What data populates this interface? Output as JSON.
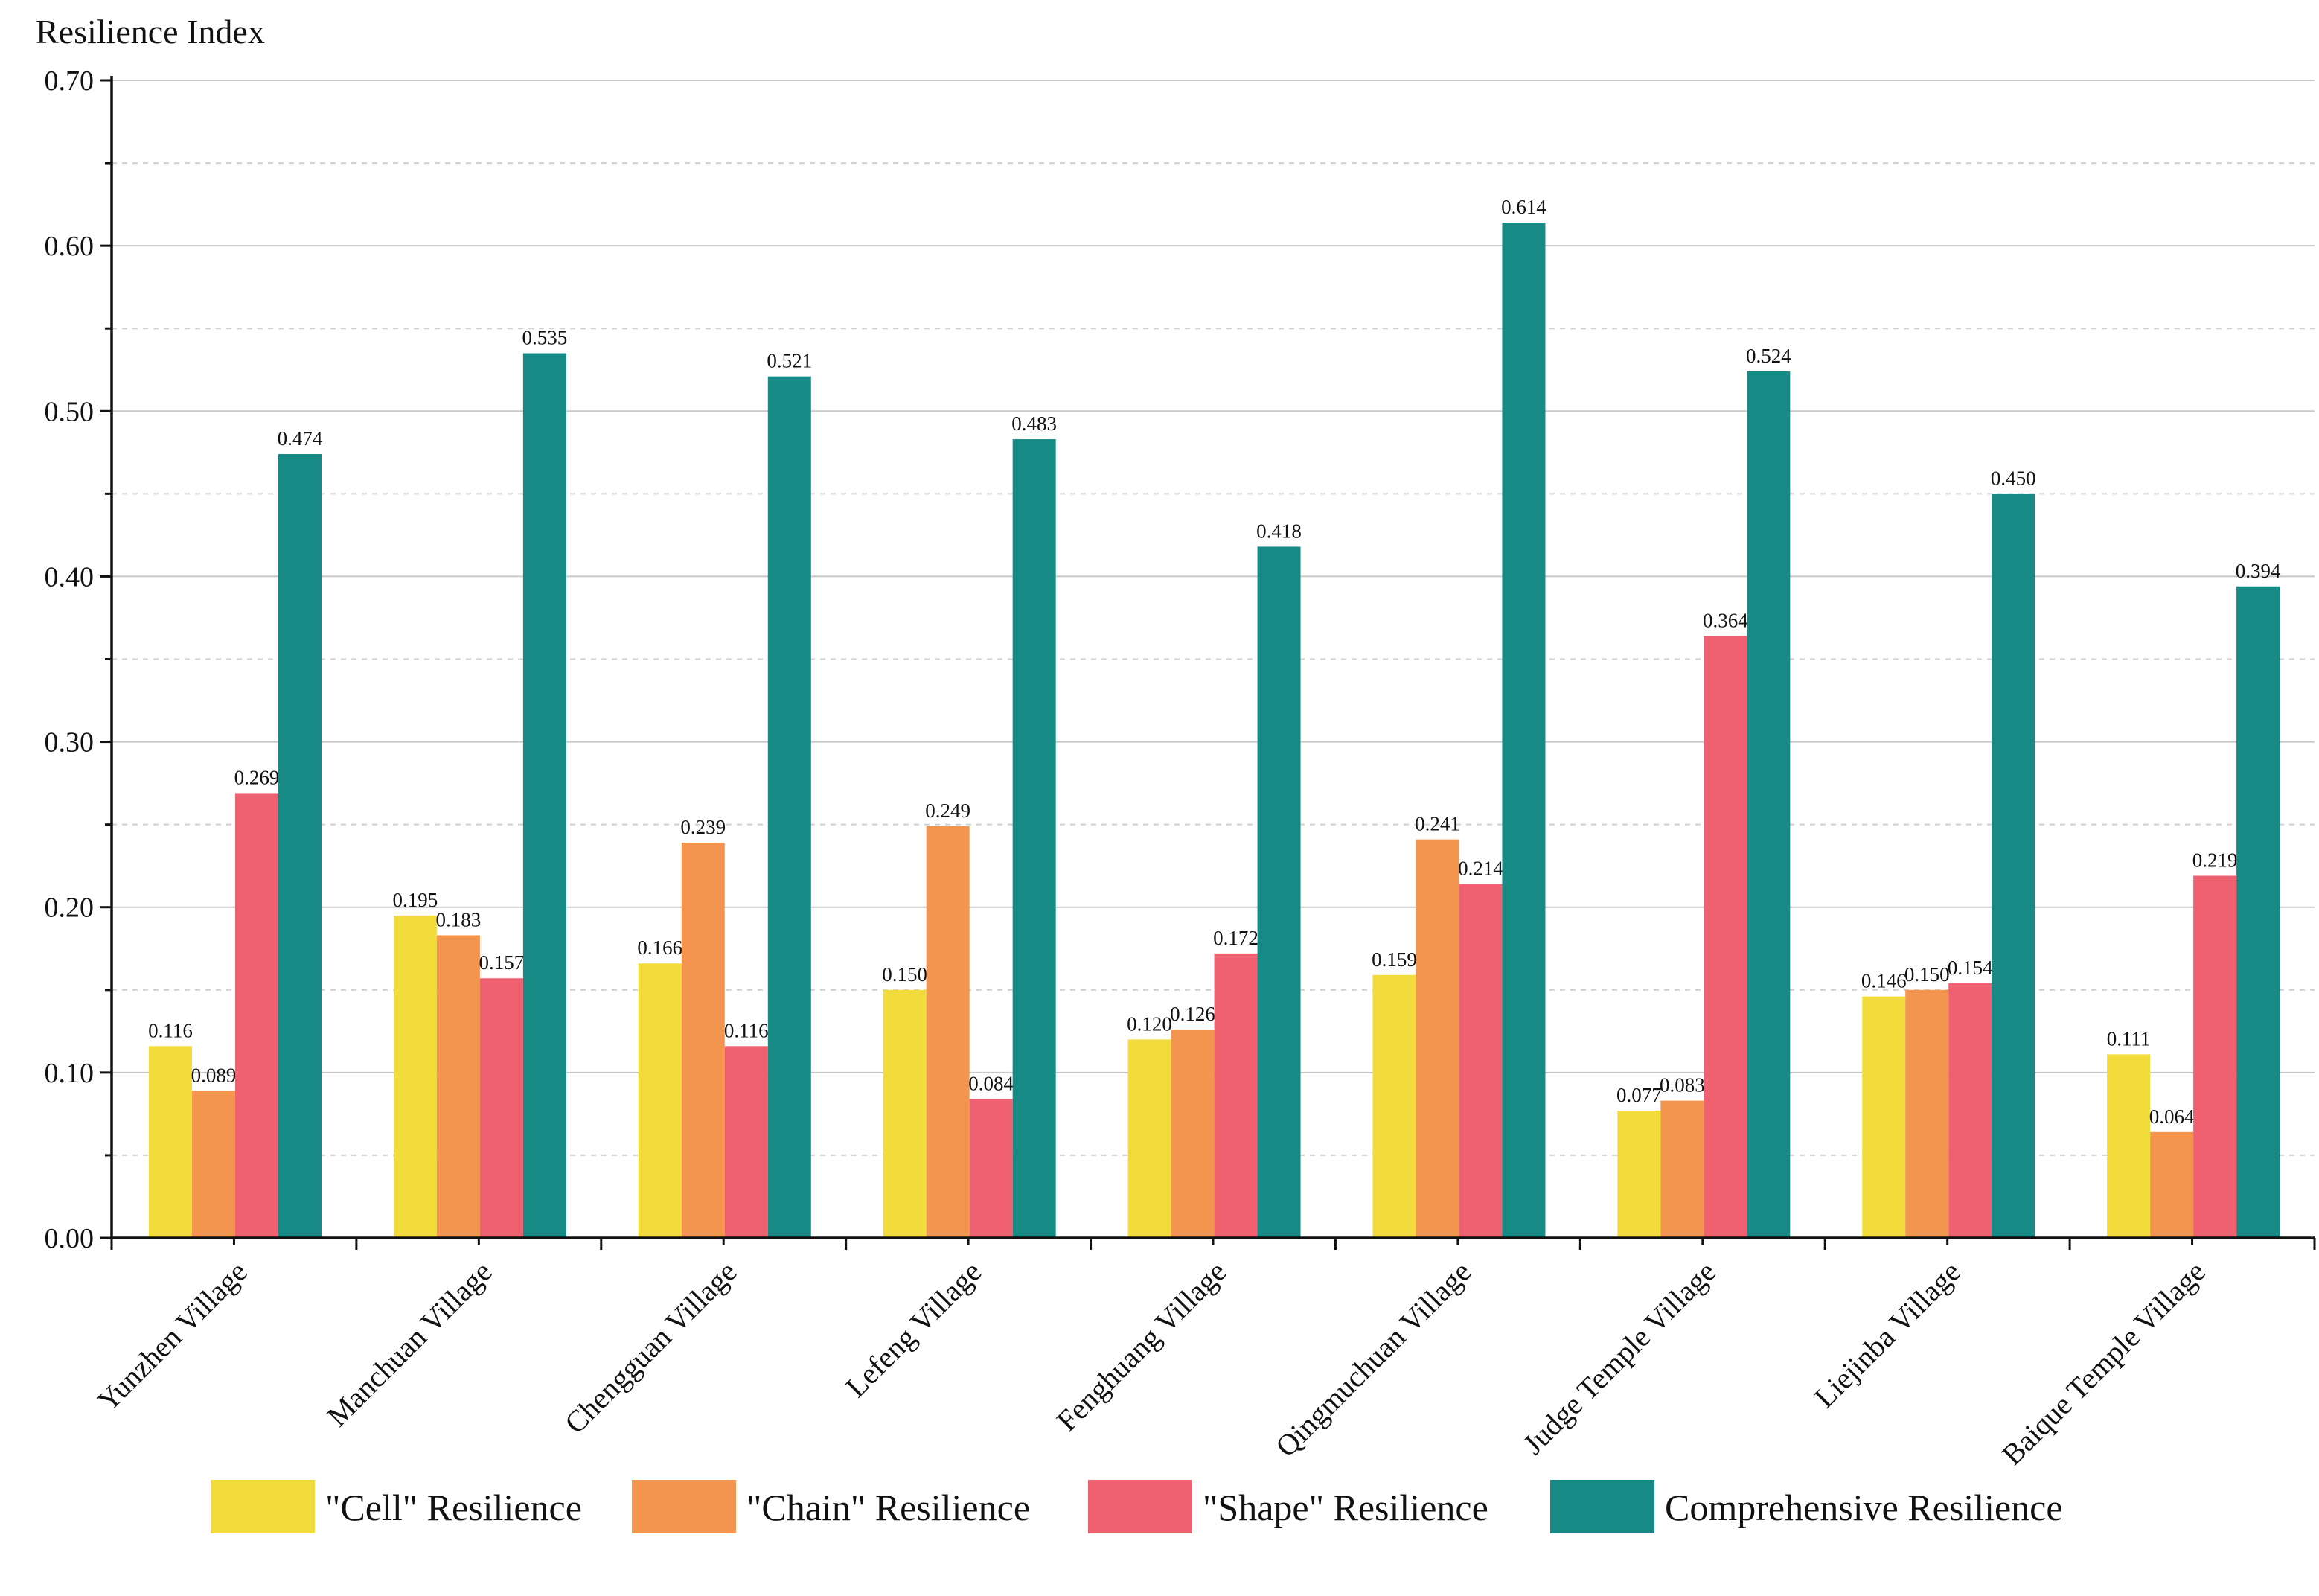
{
  "chart_data": {
    "type": "bar",
    "title": "",
    "ylabel": "Resilience Index",
    "xlabel": "",
    "ylim": [
      0,
      0.7
    ],
    "yticks": [
      "0.00",
      "0.10",
      "0.20",
      "0.30",
      "0.40",
      "0.50",
      "0.60",
      "0.70"
    ],
    "grid": true,
    "legend_position": "bottom",
    "categories": [
      "Yunzhen Village",
      "Manchuan Village",
      "Chengguan Village",
      "Lefeng Village",
      "Fenghuang Village",
      "Qingmuchuan Village",
      "Judge Temple Village",
      "Liejinba Village",
      "Baique Temple Village"
    ],
    "series": [
      {
        "name": "\"Cell\" Resilience",
        "color": "#f2dc3c",
        "values": [
          0.116,
          0.195,
          0.166,
          0.15,
          0.12,
          0.159,
          0.077,
          0.146,
          0.111
        ],
        "labels": [
          "0.116",
          "0.195",
          "0.166",
          "0.150",
          "0.120",
          "0.159",
          "0.077",
          "0.146",
          "0.111"
        ]
      },
      {
        "name": "\"Chain\" Resilience",
        "color": "#f4954f",
        "values": [
          0.089,
          0.183,
          0.239,
          0.249,
          0.126,
          0.241,
          0.083,
          0.15,
          0.064
        ],
        "labels": [
          "0.089",
          "0.183",
          "0.239",
          "0.249",
          "0.126",
          "0.241",
          "0.083",
          "0.150",
          "0.064"
        ]
      },
      {
        "name": "\"Shape\" Resilience",
        "color": "#ef6071",
        "values": [
          0.269,
          0.157,
          0.116,
          0.084,
          0.172,
          0.214,
          0.364,
          0.154,
          0.219
        ],
        "labels": [
          "0.269",
          "0.157",
          "0.116",
          "0.084",
          "0.172",
          "0.214",
          "0.364",
          "0.154",
          "0.219"
        ]
      },
      {
        "name": "Comprehensive Resilience",
        "color": "#178a86",
        "values": [
          0.474,
          0.535,
          0.521,
          0.483,
          0.418,
          0.614,
          0.524,
          0.45,
          0.394
        ],
        "labels": [
          "0.474",
          "0.535",
          "0.521",
          "0.483",
          "0.418",
          "0.614",
          "0.524",
          "0.450",
          "0.394"
        ]
      }
    ]
  }
}
